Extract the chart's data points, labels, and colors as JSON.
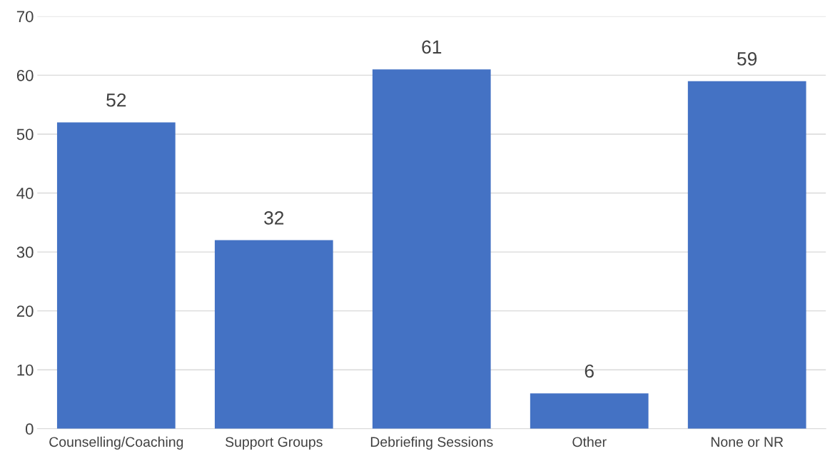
{
  "chart_data": {
    "type": "bar",
    "categories": [
      "Counselling/Coaching",
      "Support Groups",
      "Debriefing Sessions",
      "Other",
      "None or NR"
    ],
    "values": [
      52,
      32,
      61,
      6,
      59
    ],
    "color": "#4472c4",
    "ylim": [
      0,
      70
    ],
    "yticks": [
      0,
      10,
      20,
      30,
      40,
      50,
      60,
      70
    ],
    "grid": "y",
    "data_labels": true,
    "legend": false
  }
}
